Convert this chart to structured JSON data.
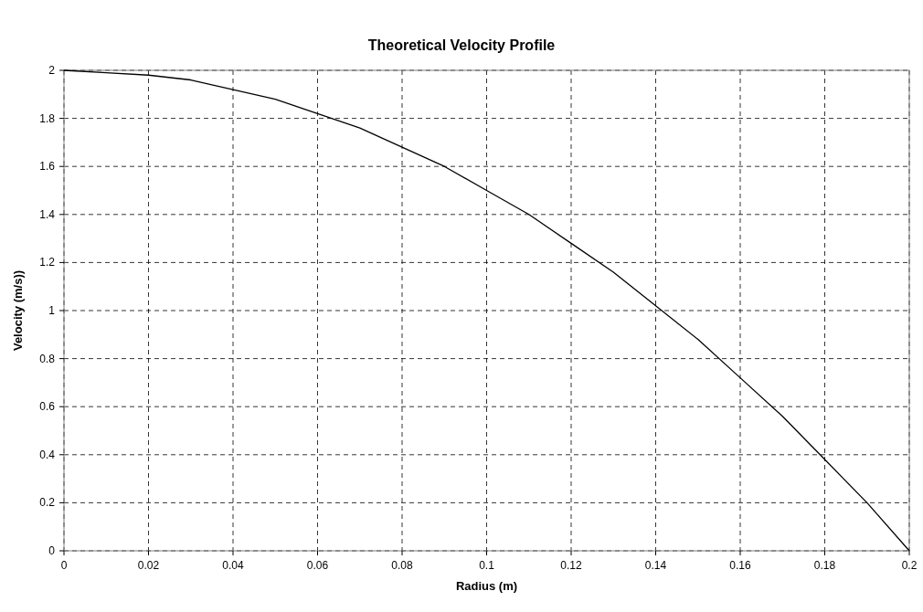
{
  "chart_data": {
    "type": "line",
    "title": "Theoretical Velocity Profile",
    "xlabel": "Radius (m)",
    "ylabel": "Velocity (m/s))",
    "x": [
      0,
      0.01,
      0.02,
      0.03,
      0.04,
      0.05,
      0.06,
      0.07,
      0.08,
      0.09,
      0.1,
      0.11,
      0.12,
      0.13,
      0.14,
      0.15,
      0.16,
      0.17,
      0.18,
      0.19,
      0.2
    ],
    "series": [
      {
        "color": "#000000",
        "values": [
          2,
          1.99,
          1.98,
          1.96,
          1.92,
          1.88,
          1.82,
          1.76,
          1.68,
          1.6,
          1.5,
          1.4,
          1.28,
          1.16,
          1.02,
          0.88,
          0.72,
          0.56,
          0.38,
          0.2,
          0
        ]
      }
    ],
    "xlim": [
      0,
      0.2
    ],
    "xticks": [
      0,
      0.02,
      0.04,
      0.06,
      0.08,
      0.1,
      0.12,
      0.14,
      0.16,
      0.18,
      0.2
    ],
    "ylim": [
      0,
      2
    ],
    "yticks": [
      0,
      0.2,
      0.4,
      0.6,
      0.8,
      1,
      1.2,
      1.4,
      1.6,
      1.8,
      2
    ],
    "grid": true,
    "marker": "none",
    "line_style": "solid"
  }
}
